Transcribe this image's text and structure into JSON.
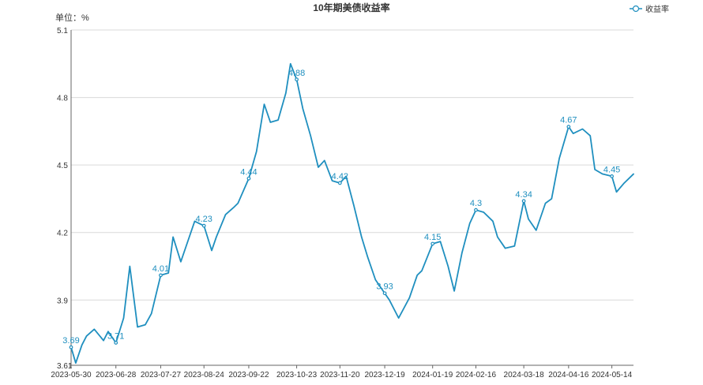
{
  "chart_data": {
    "type": "line",
    "title": "10年期美债收益率",
    "subtitle": "",
    "xlabel": "",
    "ylabel": "",
    "unit_label": "单位：%",
    "legend": {
      "position": "top-right",
      "entries": [
        "收益率"
      ]
    },
    "grid": true,
    "ylim": [
      3.61,
      5.1
    ],
    "y_ticks": [
      3.61,
      3.9,
      4.2,
      4.5,
      4.8,
      5.1
    ],
    "x_tick_labels": [
      "2023-05-30",
      "2023-06-28",
      "2023-07-27",
      "2023-08-24",
      "2023-09-22",
      "2023-10-23",
      "2023-11-20",
      "2023-12-19",
      "2024-01-19",
      "2024-02-16",
      "2024-03-18",
      "2024-04-16",
      "2024-05-14"
    ],
    "series": [
      {
        "name": "收益率",
        "x": [
          "2023-05-30",
          "2023-06-02",
          "2023-06-06",
          "2023-06-09",
          "2023-06-14",
          "2023-06-20",
          "2023-06-23",
          "2023-06-28",
          "2023-07-03",
          "2023-07-07",
          "2023-07-12",
          "2023-07-17",
          "2023-07-21",
          "2023-07-27",
          "2023-08-01",
          "2023-08-04",
          "2023-08-09",
          "2023-08-14",
          "2023-08-18",
          "2023-08-24",
          "2023-08-29",
          "2023-09-01",
          "2023-09-07",
          "2023-09-12",
          "2023-09-15",
          "2023-09-22",
          "2023-09-27",
          "2023-10-02",
          "2023-10-06",
          "2023-10-11",
          "2023-10-16",
          "2023-10-19",
          "2023-10-23",
          "2023-10-27",
          "2023-11-01",
          "2023-11-06",
          "2023-11-10",
          "2023-11-15",
          "2023-11-20",
          "2023-11-24",
          "2023-11-29",
          "2023-12-04",
          "2023-12-08",
          "2023-12-13",
          "2023-12-19",
          "2023-12-22",
          "2023-12-28",
          "2024-01-04",
          "2024-01-09",
          "2024-01-12",
          "2024-01-19",
          "2024-01-24",
          "2024-01-29",
          "2024-02-02",
          "2024-02-07",
          "2024-02-12",
          "2024-02-16",
          "2024-02-21",
          "2024-02-27",
          "2024-03-01",
          "2024-03-06",
          "2024-03-12",
          "2024-03-18",
          "2024-03-21",
          "2024-03-26",
          "2024-04-01",
          "2024-04-05",
          "2024-04-10",
          "2024-04-16",
          "2024-04-19",
          "2024-04-25",
          "2024-04-30",
          "2024-05-03",
          "2024-05-08",
          "2024-05-14",
          "2024-05-17",
          "2024-05-22",
          "2024-05-28"
        ],
        "values": [
          3.69,
          3.62,
          3.7,
          3.74,
          3.77,
          3.72,
          3.76,
          3.71,
          3.82,
          4.05,
          3.78,
          3.79,
          3.84,
          4.01,
          4.02,
          4.18,
          4.07,
          4.17,
          4.25,
          4.23,
          4.12,
          4.18,
          4.28,
          4.31,
          4.33,
          4.44,
          4.56,
          4.77,
          4.69,
          4.7,
          4.82,
          4.95,
          4.88,
          4.75,
          4.63,
          4.49,
          4.52,
          4.43,
          4.42,
          4.45,
          4.32,
          4.18,
          4.09,
          3.99,
          3.93,
          3.9,
          3.82,
          3.91,
          4.01,
          4.03,
          4.15,
          4.16,
          4.05,
          3.94,
          4.11,
          4.24,
          4.3,
          4.29,
          4.25,
          4.18,
          4.13,
          4.14,
          4.34,
          4.26,
          4.21,
          4.33,
          4.35,
          4.53,
          4.67,
          4.64,
          4.66,
          4.63,
          4.48,
          4.46,
          4.45,
          4.38,
          4.42,
          4.46
        ],
        "labeled_points": [
          {
            "x": "2023-05-30",
            "value": 3.69
          },
          {
            "x": "2023-06-28",
            "value": 3.71
          },
          {
            "x": "2023-07-27",
            "value": 4.01
          },
          {
            "x": "2023-08-24",
            "value": 4.23
          },
          {
            "x": "2023-09-22",
            "value": 4.44
          },
          {
            "x": "2023-10-23",
            "value": 4.88
          },
          {
            "x": "2023-11-20",
            "value": 4.42
          },
          {
            "x": "2023-12-19",
            "value": 3.93
          },
          {
            "x": "2024-01-19",
            "value": 4.15
          },
          {
            "x": "2024-02-16",
            "value": 4.3
          },
          {
            "x": "2024-03-18",
            "value": 4.34
          },
          {
            "x": "2024-04-16",
            "value": 4.67
          },
          {
            "x": "2024-05-14",
            "value": 4.45
          }
        ]
      }
    ],
    "colors": {
      "series": "#1f8fbf",
      "grid": "#d9d9d9",
      "axis": "#666666",
      "text": "#333333"
    }
  }
}
